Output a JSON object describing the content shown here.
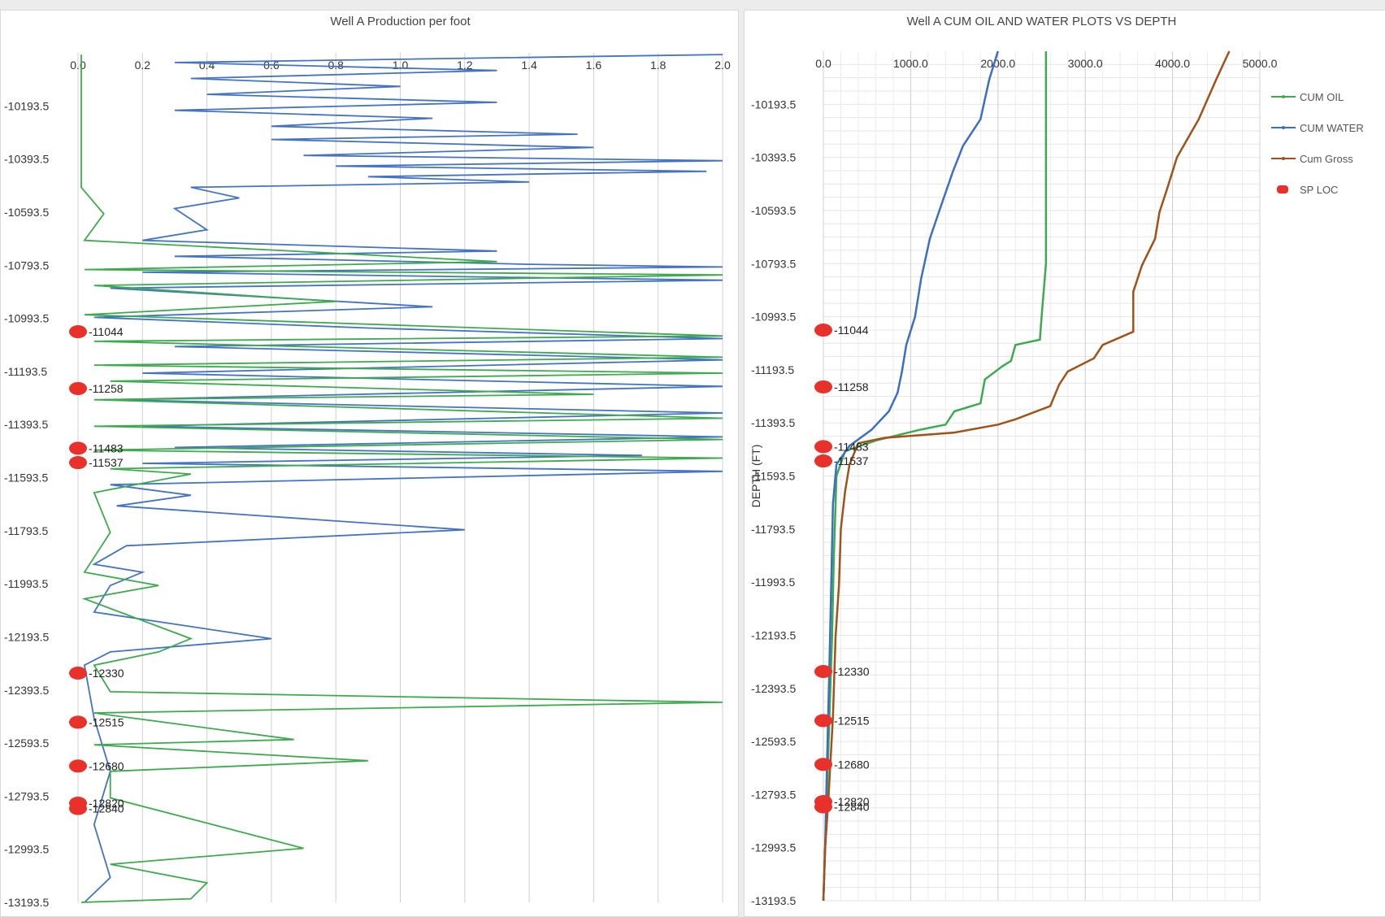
{
  "chart_data": [
    {
      "type": "line",
      "title": "Well A Production per foot",
      "xlim": [
        0,
        2.0
      ],
      "x_ticks": [
        "0.0",
        "0.2",
        "0.4",
        "0.6",
        "0.8",
        "1.0",
        "1.2",
        "1.4",
        "1.6",
        "1.8",
        "2.0"
      ],
      "ylim": [
        -9993.5,
        -13193.5
      ],
      "y_ticks": [
        "-10193.5",
        "-10393.5",
        "-10593.5",
        "-10793.5",
        "-10993.5",
        "-11193.5",
        "-11393.5",
        "-11593.5",
        "-11793.5",
        "-11993.5",
        "-12193.5",
        "-12393.5",
        "-12593.5",
        "-12793.5",
        "-12993.5",
        "-13193.5"
      ],
      "gridlines": "vertical",
      "series": [
        {
          "color": "#4472c4",
          "points": [
            [
              2.0,
              -10000
            ],
            [
              0.3,
              -10030
            ],
            [
              1.3,
              -10060
            ],
            [
              0.35,
              -10090
            ],
            [
              1.0,
              -10120
            ],
            [
              0.4,
              -10150
            ],
            [
              1.3,
              -10180
            ],
            [
              0.3,
              -10210
            ],
            [
              1.1,
              -10240
            ],
            [
              0.6,
              -10270
            ],
            [
              1.55,
              -10300
            ],
            [
              0.6,
              -10320
            ],
            [
              1.6,
              -10350
            ],
            [
              0.7,
              -10380
            ],
            [
              2.0,
              -10400
            ],
            [
              0.8,
              -10420
            ],
            [
              1.95,
              -10440
            ],
            [
              0.9,
              -10460
            ],
            [
              1.4,
              -10480
            ],
            [
              0.35,
              -10500
            ],
            [
              0.5,
              -10540
            ],
            [
              0.3,
              -10580
            ],
            [
              0.35,
              -10620
            ],
            [
              0.4,
              -10660
            ],
            [
              0.2,
              -10700
            ],
            [
              1.3,
              -10740
            ],
            [
              0.3,
              -10760
            ],
            [
              1.4,
              -10790
            ],
            [
              2.0,
              -10800
            ],
            [
              0.2,
              -10820
            ],
            [
              2.0,
              -10850
            ],
            [
              0.1,
              -10880
            ],
            [
              1.1,
              -10950
            ],
            [
              0.05,
              -10990
            ],
            [
              0.9,
              -11030
            ],
            [
              2.0,
              -11070
            ],
            [
              0.3,
              -11100
            ],
            [
              2.0,
              -11150
            ],
            [
              0.2,
              -11200
            ],
            [
              2.0,
              -11250
            ],
            [
              0.1,
              -11300
            ],
            [
              2.0,
              -11350
            ],
            [
              0.2,
              -11400
            ],
            [
              2.0,
              -11440
            ],
            [
              0.3,
              -11480
            ],
            [
              1.75,
              -11510
            ],
            [
              0.2,
              -11540
            ],
            [
              2.0,
              -11570
            ],
            [
              0.1,
              -11620
            ],
            [
              0.35,
              -11660
            ],
            [
              0.12,
              -11700
            ],
            [
              1.2,
              -11790
            ],
            [
              0.15,
              -11850
            ],
            [
              0.05,
              -11920
            ],
            [
              0.2,
              -11950
            ],
            [
              0.1,
              -12000
            ],
            [
              0.05,
              -12100
            ],
            [
              0.6,
              -12200
            ],
            [
              0.1,
              -12250
            ],
            [
              0.02,
              -12300
            ],
            [
              0.05,
              -12500
            ],
            [
              0.1,
              -12700
            ],
            [
              0.05,
              -12900
            ],
            [
              0.1,
              -13100
            ],
            [
              0.02,
              -13193.5
            ]
          ]
        },
        {
          "color": "#3eaa4e",
          "points": [
            [
              0.01,
              -10000
            ],
            [
              0.01,
              -10500
            ],
            [
              0.08,
              -10600
            ],
            [
              0.02,
              -10700
            ],
            [
              1.3,
              -10780
            ],
            [
              0.02,
              -10810
            ],
            [
              2.0,
              -10830
            ],
            [
              0.05,
              -10870
            ],
            [
              0.8,
              -10930
            ],
            [
              0.02,
              -10980
            ],
            [
              2.0,
              -11060
            ],
            [
              0.05,
              -11080
            ],
            [
              2.0,
              -11140
            ],
            [
              0.05,
              -11170
            ],
            [
              2.0,
              -11200
            ],
            [
              0.1,
              -11230
            ],
            [
              1.6,
              -11280
            ],
            [
              0.05,
              -11300
            ],
            [
              2.0,
              -11370
            ],
            [
              0.05,
              -11400
            ],
            [
              2.0,
              -11450
            ],
            [
              0.05,
              -11490
            ],
            [
              2.0,
              -11520
            ],
            [
              0.1,
              -11560
            ],
            [
              0.35,
              -11580
            ],
            [
              0.05,
              -11650
            ],
            [
              0.1,
              -11800
            ],
            [
              0.02,
              -11950
            ],
            [
              0.25,
              -12000
            ],
            [
              0.02,
              -12050
            ],
            [
              0.35,
              -12200
            ],
            [
              0.25,
              -12250
            ],
            [
              0.05,
              -12300
            ],
            [
              0.1,
              -12400
            ],
            [
              2.0,
              -12440
            ],
            [
              0.05,
              -12480
            ],
            [
              0.67,
              -12580
            ],
            [
              0.05,
              -12600
            ],
            [
              0.9,
              -12660
            ],
            [
              0.1,
              -12700
            ],
            [
              0.1,
              -12800
            ],
            [
              0.7,
              -12990
            ],
            [
              0.1,
              -13050
            ],
            [
              0.4,
              -13120
            ],
            [
              0.35,
              -13180
            ],
            [
              0.01,
              -13193.5
            ]
          ]
        }
      ],
      "sp_loc": [
        {
          "depth": -11044,
          "label": "-11044"
        },
        {
          "depth": -11258,
          "label": "-11258"
        },
        {
          "depth": -11483,
          "label": "-11483"
        },
        {
          "depth": -11537,
          "label": "-11537"
        },
        {
          "depth": -12330,
          "label": "-12330"
        },
        {
          "depth": -12515,
          "label": "-12515"
        },
        {
          "depth": -12680,
          "label": "-12680"
        },
        {
          "depth": -12820,
          "label": "-12820"
        },
        {
          "depth": -12840,
          "label": "-12840"
        }
      ],
      "sp_color": "#e8312a"
    },
    {
      "type": "line",
      "title": "Well A CUM OIL AND WATER PLOTS VS DEPTH",
      "ylabel": "DEPTH (FT)",
      "xlim": [
        0,
        5000
      ],
      "x_ticks": [
        "0.0",
        "1000.0",
        "2000.0",
        "3000.0",
        "4000.0",
        "5000.0"
      ],
      "ylim": [
        -9993.5,
        -13193.5
      ],
      "y_ticks": [
        "-10193.5",
        "-10393.5",
        "-10593.5",
        "-10793.5",
        "-10993.5",
        "-11193.5",
        "-11393.5",
        "-11593.5",
        "-11793.5",
        "-11993.5",
        "-12193.5",
        "-12393.5",
        "-12593.5",
        "-12793.5",
        "-12993.5",
        "-13193.5"
      ],
      "gridlines": "both",
      "legend": "right",
      "series": [
        {
          "name": "CUM OIL",
          "color": "#3eaa4e",
          "points": [
            [
              2550,
              -9993.5
            ],
            [
              2550,
              -10793.5
            ],
            [
              2500,
              -10993.5
            ],
            [
              2480,
              -11080
            ],
            [
              2200,
              -11100
            ],
            [
              2150,
              -11160
            ],
            [
              2050,
              -11180
            ],
            [
              1850,
              -11230
            ],
            [
              1800,
              -11320
            ],
            [
              1500,
              -11350
            ],
            [
              1400,
              -11400
            ],
            [
              1100,
              -11420
            ],
            [
              600,
              -11460
            ],
            [
              250,
              -11500
            ],
            [
              150,
              -11593.5
            ],
            [
              120,
              -11900
            ],
            [
              100,
              -12200
            ],
            [
              60,
              -12600
            ],
            [
              30,
              -12900
            ],
            [
              0,
              -13193.5
            ]
          ]
        },
        {
          "name": "CUM WATER",
          "color": "#3a6fc4",
          "points": [
            [
              2000,
              -9993.5
            ],
            [
              1900,
              -10100
            ],
            [
              1800,
              -10250
            ],
            [
              1600,
              -10350
            ],
            [
              1480,
              -10450
            ],
            [
              1330,
              -10593.5
            ],
            [
              1220,
              -10700
            ],
            [
              1120,
              -10850
            ],
            [
              1050,
              -10993.5
            ],
            [
              950,
              -11100
            ],
            [
              900,
              -11200
            ],
            [
              850,
              -11280
            ],
            [
              750,
              -11350
            ],
            [
              550,
              -11420
            ],
            [
              300,
              -11480
            ],
            [
              150,
              -11550
            ],
            [
              110,
              -11700
            ],
            [
              90,
              -12000
            ],
            [
              70,
              -12300
            ],
            [
              40,
              -12700
            ],
            [
              20,
              -13000
            ],
            [
              0,
              -13193.5
            ]
          ]
        },
        {
          "name": "Cum Gross",
          "color": "#a0521a",
          "points": [
            [
              4650,
              -9993.5
            ],
            [
              4500,
              -10100
            ],
            [
              4300,
              -10250
            ],
            [
              4050,
              -10393.5
            ],
            [
              3950,
              -10500
            ],
            [
              3850,
              -10600
            ],
            [
              3800,
              -10700
            ],
            [
              3650,
              -10800
            ],
            [
              3550,
              -10900
            ],
            [
              3550,
              -11050
            ],
            [
              3200,
              -11100
            ],
            [
              3100,
              -11150
            ],
            [
              2800,
              -11200
            ],
            [
              2700,
              -11250
            ],
            [
              2600,
              -11330
            ],
            [
              2200,
              -11380
            ],
            [
              2000,
              -11400
            ],
            [
              1500,
              -11430
            ],
            [
              700,
              -11450
            ],
            [
              400,
              -11470
            ],
            [
              300,
              -11550
            ],
            [
              250,
              -11650
            ],
            [
              200,
              -11793.5
            ],
            [
              180,
              -12000
            ],
            [
              140,
              -12200
            ],
            [
              110,
              -12500
            ],
            [
              60,
              -12800
            ],
            [
              20,
              -13000
            ],
            [
              0,
              -13193.5
            ]
          ]
        },
        {
          "name": "SP LOC",
          "color": "#e8312a",
          "points": [
            [
              0,
              -11044
            ],
            [
              0,
              -11258
            ],
            [
              0,
              -11483
            ],
            [
              0,
              -11537
            ],
            [
              0,
              -12330
            ],
            [
              0,
              -12515
            ],
            [
              0,
              -12680
            ],
            [
              0,
              -12820
            ],
            [
              0,
              -12840
            ]
          ]
        }
      ],
      "sp_labels": [
        "-11044",
        "-11258",
        "-11483",
        "-11537",
        "-12330",
        "-12515",
        "-12680",
        "-12820",
        "-12840"
      ]
    }
  ]
}
